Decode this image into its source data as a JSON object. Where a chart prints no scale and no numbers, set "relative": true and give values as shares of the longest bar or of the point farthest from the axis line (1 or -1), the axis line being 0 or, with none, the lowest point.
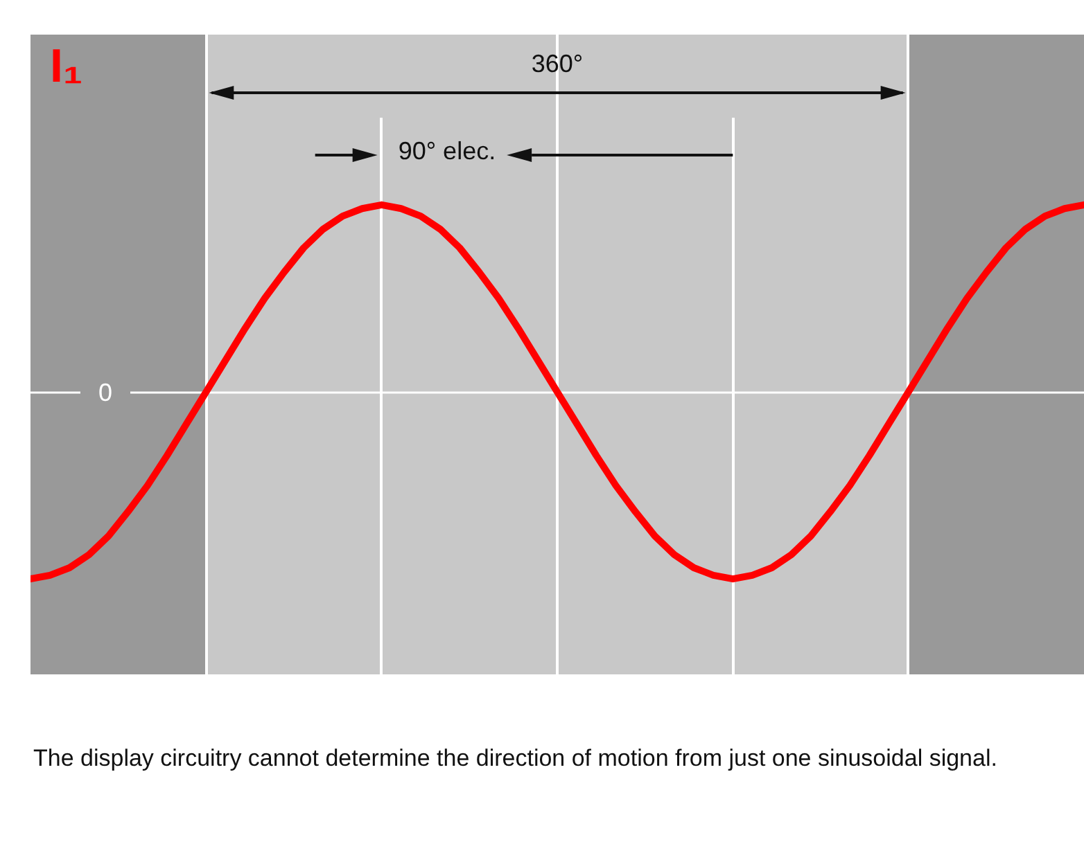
{
  "chart_data": {
    "type": "line",
    "title": "I₁",
    "relative": true,
    "legend": false,
    "marker": "none",
    "line_style": "solid",
    "categories": [
      null,
      null,
      null,
      null,
      null,
      null,
      null,
      null,
      null,
      null,
      null,
      null,
      null,
      null,
      null,
      null,
      null,
      null,
      null,
      null,
      null,
      null,
      null,
      null,
      null,
      null,
      null,
      null,
      null,
      null,
      null,
      null,
      null,
      null,
      null,
      null,
      null,
      null,
      null,
      null,
      null,
      null,
      null,
      null,
      null,
      null,
      null,
      null,
      null,
      null,
      null,
      null,
      null,
      null,
      null
    ],
    "series": [
      {
        "color": "#ff0000",
        "values": [
          -1,
          -0.98,
          -0.94,
          -0.87,
          -0.77,
          -0.64,
          -0.5,
          -0.34,
          -0.17,
          0,
          0.17,
          0.34,
          0.5,
          0.64,
          0.77,
          0.87,
          0.94,
          0.98,
          1,
          0.98,
          0.94,
          0.87,
          0.77,
          0.64,
          0.5,
          0.34,
          0.17,
          0,
          -0.17,
          -0.34,
          -0.5,
          -0.64,
          -0.77,
          -0.87,
          -0.94,
          -0.98,
          -1,
          -0.98,
          -0.94,
          -0.87,
          -0.77,
          -0.64,
          -0.5,
          -0.34,
          -0.17,
          0,
          0.17,
          0.34,
          0.5,
          0.64,
          0.77,
          0.87,
          0.94,
          0.98,
          1
        ]
      }
    ],
    "annotations": [
      "360°",
      "90° elec.",
      "0",
      "The display circuitry cannot determine the direction of motion from just one sinusoidal signal."
    ]
  }
}
